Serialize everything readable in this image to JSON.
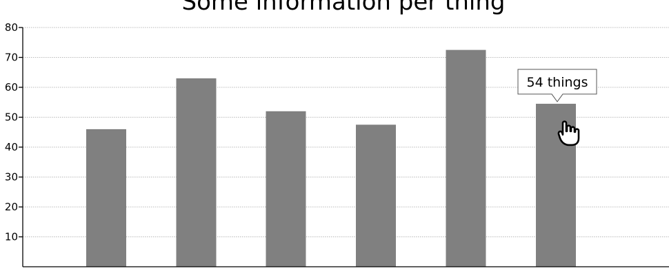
{
  "chart_data": {
    "type": "bar",
    "title": "Some information per thing",
    "xlabel": "",
    "ylabel": "",
    "categories": [
      "",
      "",
      "",
      "",
      "",
      ""
    ],
    "values": [
      46,
      63,
      52,
      47.5,
      72.5,
      54.5
    ],
    "ylim": [
      0,
      80
    ],
    "yticks": [
      10,
      20,
      30,
      40,
      50,
      60,
      70,
      80
    ],
    "ytick_labels": [
      "10",
      "20",
      "30",
      "40",
      "50",
      "60",
      "70",
      "80"
    ],
    "grid": true,
    "bar_color": "#808080",
    "hovered_index": 5
  },
  "tooltip": {
    "text": "54 things"
  },
  "cursor": {
    "icon": "hand-pointer-icon"
  }
}
